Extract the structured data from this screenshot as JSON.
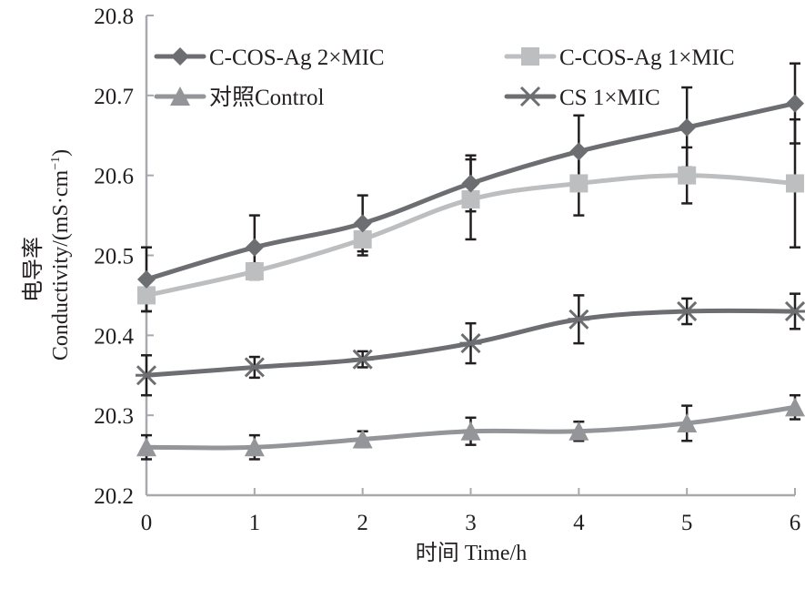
{
  "chart_data": {
    "type": "line",
    "title": "",
    "xlabel": "时间  Time/h",
    "ylabel_line1": "电导率",
    "ylabel_line2": "Conductivity/(mS·cm",
    "ylabel_sup": "−1",
    "ylabel_close": ")",
    "x": [
      0,
      1,
      2,
      3,
      4,
      5,
      6
    ],
    "xlim": [
      0,
      6
    ],
    "ylim": [
      20.2,
      20.8
    ],
    "x_ticks": [
      "0",
      "1",
      "2",
      "3",
      "4",
      "5",
      "6"
    ],
    "y_ticks": [
      "20.2",
      "20.3",
      "20.4",
      "20.5",
      "20.6",
      "20.7",
      "20.8"
    ],
    "y_tick_values": [
      20.2,
      20.3,
      20.4,
      20.5,
      20.6,
      20.7,
      20.8
    ],
    "grid": false,
    "legend_position": "top-left",
    "series": [
      {
        "name": "C-COS-Ag 2×MIC",
        "marker": "diamond",
        "color": "#6d6e71",
        "values": [
          20.47,
          20.51,
          20.54,
          20.59,
          20.63,
          20.66,
          20.69
        ],
        "errors": [
          0.04,
          0.04,
          0.035,
          0.035,
          0.045,
          0.05,
          0.05
        ]
      },
      {
        "name": "C-COS-Ag 1×MIC",
        "marker": "square",
        "color": "#bcbec0",
        "values": [
          20.45,
          20.48,
          20.52,
          20.57,
          20.59,
          20.6,
          20.59
        ],
        "errors": [
          0.02,
          0.01,
          0.02,
          0.05,
          0.04,
          0.035,
          0.08
        ]
      },
      {
        "name": "对照Control",
        "marker": "triangle",
        "color": "#939598",
        "values": [
          20.26,
          20.26,
          20.27,
          20.28,
          20.28,
          20.29,
          20.31
        ],
        "errors": [
          0.015,
          0.015,
          0.01,
          0.017,
          0.012,
          0.022,
          0.015
        ]
      },
      {
        "name": "CS 1×MIC",
        "marker": "x",
        "color": "#6d6e71",
        "values": [
          20.35,
          20.36,
          20.37,
          20.39,
          20.42,
          20.43,
          20.43
        ],
        "errors": [
          0.025,
          0.013,
          0.01,
          0.025,
          0.03,
          0.016,
          0.022
        ]
      }
    ]
  }
}
